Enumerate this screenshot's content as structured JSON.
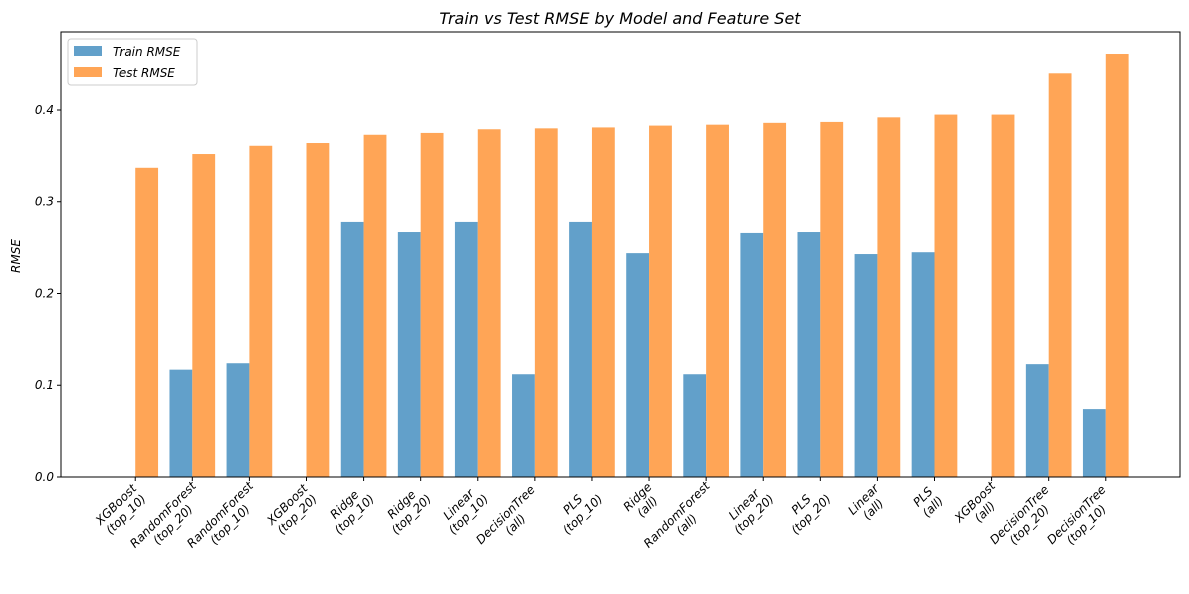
{
  "chart_data": {
    "type": "bar",
    "title": "Train vs Test RMSE by Model and Feature Set",
    "xlabel": "",
    "ylabel": "RMSE",
    "ylim": [
      0,
      0.485
    ],
    "yticks": [
      "0.0",
      "0.1",
      "0.2",
      "0.3",
      "0.4"
    ],
    "grid": false,
    "legend_placement": "top-left",
    "categories": [
      [
        "XGBoost",
        "(top_10)"
      ],
      [
        "RandomForest",
        "(top_20)"
      ],
      [
        "RandomForest",
        "(top_10)"
      ],
      [
        "XGBoost",
        "(top_20)"
      ],
      [
        "Ridge",
        "(top_10)"
      ],
      [
        "Ridge",
        "(top_20)"
      ],
      [
        "Linear",
        "(top_10)"
      ],
      [
        "DecisionTree",
        "(all)"
      ],
      [
        "PLS",
        "(top_10)"
      ],
      [
        "Ridge",
        "(all)"
      ],
      [
        "RandomForest",
        "(all)"
      ],
      [
        "Linear",
        "(top_20)"
      ],
      [
        "PLS",
        "(top_20)"
      ],
      [
        "Linear",
        "(all)"
      ],
      [
        "PLS",
        "(all)"
      ],
      [
        "XGBoost",
        "(all)"
      ],
      [
        "DecisionTree",
        "(top_20)"
      ],
      [
        "DecisionTree",
        "(top_10)"
      ]
    ],
    "series": [
      {
        "name": "Train RMSE",
        "color": "#62a0ca",
        "values": [
          0.0,
          0.117,
          0.124,
          0.0,
          0.278,
          0.267,
          0.278,
          0.112,
          0.278,
          0.244,
          0.112,
          0.266,
          0.267,
          0.243,
          0.245,
          0.0,
          0.123,
          0.074
        ]
      },
      {
        "name": "Test RMSE",
        "color": "#ffa556",
        "values": [
          0.337,
          0.352,
          0.361,
          0.364,
          0.373,
          0.375,
          0.379,
          0.38,
          0.381,
          0.383,
          0.384,
          0.386,
          0.387,
          0.392,
          0.395,
          0.395,
          0.44,
          0.461
        ]
      }
    ]
  }
}
